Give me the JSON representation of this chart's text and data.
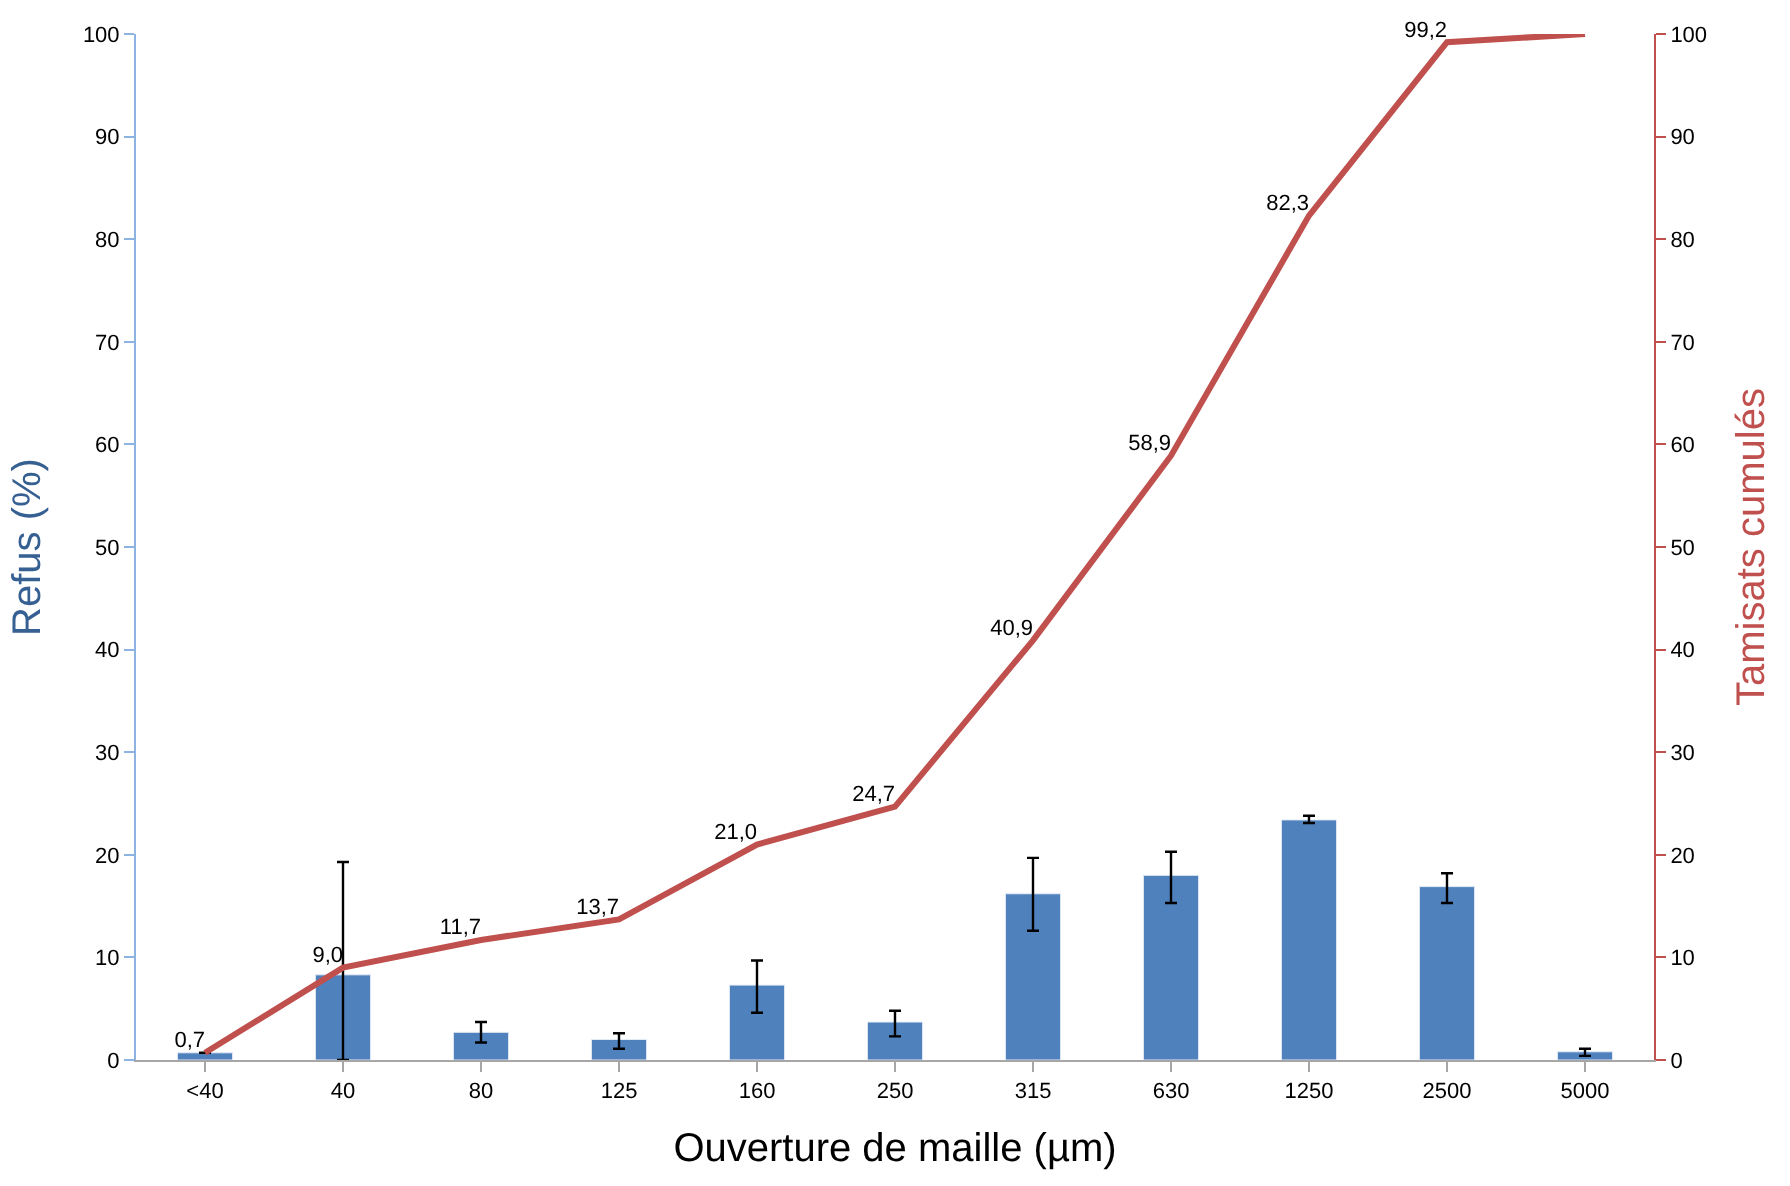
{
  "chart_data": {
    "type": "bar",
    "xlabel": "Ouverture de maille (µm)",
    "ylabel": "Refus (%)",
    "y2label": "Tamisats cumulés",
    "categories": [
      "<40",
      "40",
      "80",
      "125",
      "160",
      "250",
      "315",
      "630",
      "1250",
      "2500",
      "5000"
    ],
    "series": [
      {
        "color": "#4f81bd",
        "values": [
          0.7,
          8.3,
          2.7,
          2.0,
          7.3,
          3.7,
          16.2,
          18.0,
          23.4,
          16.9,
          0.8
        ],
        "errors": [
          null,
          [
            0,
            19.3
          ],
          [
            1.7,
            3.7
          ],
          [
            1.1,
            2.6
          ],
          [
            4.6,
            9.7
          ],
          [
            2.3,
            4.8
          ],
          [
            12.6,
            19.7
          ],
          [
            15.3,
            20.3
          ],
          [
            23.1,
            23.8
          ],
          [
            15.3,
            18.2
          ],
          [
            0.4,
            1.1
          ]
        ]
      },
      {
        "type": "line",
        "axis": "y2",
        "color": "#c0504d",
        "values": [
          0.7,
          9.0,
          11.7,
          13.7,
          21.0,
          24.7,
          40.9,
          58.9,
          82.3,
          99.2,
          100
        ],
        "value_labels": [
          "0,7",
          "9,0",
          "11,7",
          "13,7",
          "21,0",
          "24,7",
          "40,9",
          "58,9",
          "82,3",
          "99,2",
          null
        ]
      }
    ],
    "ylim": [
      0,
      100
    ],
    "yticks": [
      0,
      10,
      20,
      30,
      40,
      50,
      60,
      70,
      80,
      90,
      100
    ],
    "y2lim": [
      0,
      100
    ],
    "y2ticks": [
      0,
      10,
      20,
      30,
      40,
      50,
      60,
      70,
      80,
      90,
      100
    ],
    "marker": "none",
    "line_style": "solid"
  }
}
